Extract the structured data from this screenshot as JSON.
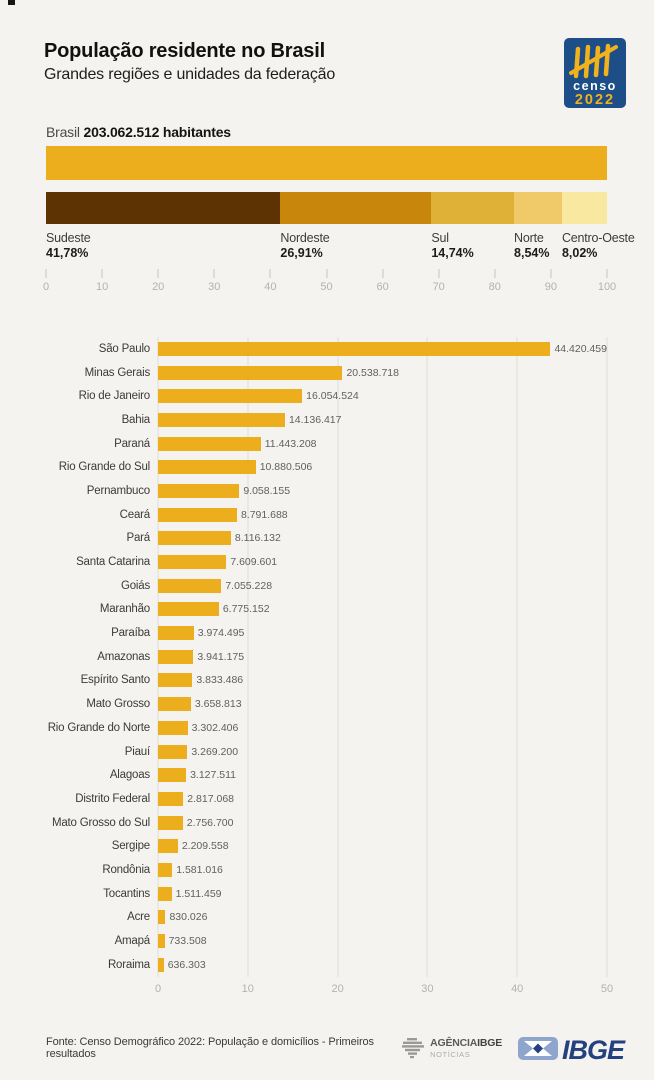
{
  "header": {
    "title": "População residente no Brasil",
    "subtitle": "Grandes regiões e unidades da federação",
    "censo_logo": {
      "word": "censo",
      "year": "2022",
      "bg_color": "#1d4e87",
      "mark_color": "#f2b21c"
    }
  },
  "summary": {
    "country": "Brasil",
    "value_text": "203.062.512 habitantes"
  },
  "chart_data": [
    {
      "type": "bar",
      "subtype": "stacked-horizontal-percent",
      "title": "Brasil 203.062.512 habitantes",
      "total_bar_color": "#ecae1c",
      "axis": {
        "min": 0,
        "max": 100,
        "ticks": [
          "0",
          "10",
          "20",
          "30",
          "40",
          "50",
          "60",
          "70",
          "80",
          "90",
          "100"
        ]
      },
      "segments": [
        {
          "label": "Sudeste",
          "percent_label": "41,78%",
          "value": 41.78,
          "color": "#5e3303"
        },
        {
          "label": "Nordeste",
          "percent_label": "26,91%",
          "value": 26.91,
          "color": "#c8860d"
        },
        {
          "label": "Sul",
          "percent_label": "14,74%",
          "value": 14.74,
          "color": "#dfb136"
        },
        {
          "label": "Norte",
          "percent_label": "8,54%",
          "value": 8.54,
          "color": "#f0c968"
        },
        {
          "label": "Centro-Oeste",
          "percent_label": "8,02%",
          "value": 8.02,
          "color": "#f9e9a0"
        }
      ]
    },
    {
      "type": "bar",
      "subtype": "horizontal",
      "bar_color": "#ecae1c",
      "xlim": [
        0,
        50000000
      ],
      "x_ticks": [
        "0",
        "10",
        "20",
        "30",
        "40",
        "50"
      ],
      "x_tick_values": [
        0,
        10000000,
        20000000,
        30000000,
        40000000,
        50000000
      ],
      "categories": [
        "São Paulo",
        "Minas Gerais",
        "Rio de Janeiro",
        "Bahia",
        "Paraná",
        "Rio Grande do Sul",
        "Pernambuco",
        "Ceará",
        "Pará",
        "Santa Catarina",
        "Goiás",
        "Maranhão",
        "Paraíba",
        "Amazonas",
        "Espírito Santo",
        "Mato Grosso",
        "Rio Grande do Norte",
        "Piauí",
        "Alagoas",
        "Distrito Federal",
        "Mato Grosso do Sul",
        "Sergipe",
        "Rondônia",
        "Tocantins",
        "Acre",
        "Amapá",
        "Roraima"
      ],
      "values": [
        44420459,
        20538718,
        16054524,
        14136417,
        11443208,
        10880506,
        9058155,
        8791688,
        8116132,
        7609601,
        7055228,
        6775152,
        3974495,
        3941175,
        3833486,
        3658813,
        3302406,
        3269200,
        3127511,
        2817068,
        2756700,
        2209558,
        1581016,
        1511459,
        830026,
        733508,
        636303
      ],
      "value_labels": [
        "44.420.459",
        "20.538.718",
        "16.054.524",
        "14.136.417",
        "11.443.208",
        "10.880.506",
        "9.058.155",
        "8.791.688",
        "8.116.132",
        "7.609.601",
        "7.055.228",
        "6.775.152",
        "3.974.495",
        "3.941.175",
        "3.833.486",
        "3.658.813",
        "3.302.406",
        "3.269.200",
        "3.127.511",
        "2.817.068",
        "2.756.700",
        "2.209.558",
        "1.581.016",
        "1.511.459",
        "830.026",
        "733.508",
        "636.303"
      ]
    }
  ],
  "footer": {
    "source": "Fonte: Censo Demográfico 2022: População e domicílios - Primeiros resultados",
    "agencia_logo": {
      "word1": "AGÊNCIA",
      "brand": "IBGE",
      "word2": "NOTÍCIAS"
    },
    "ibge_logo": {
      "text": "IBGE",
      "navy": "#24417f",
      "light_blue": "#8ea6cd"
    }
  }
}
